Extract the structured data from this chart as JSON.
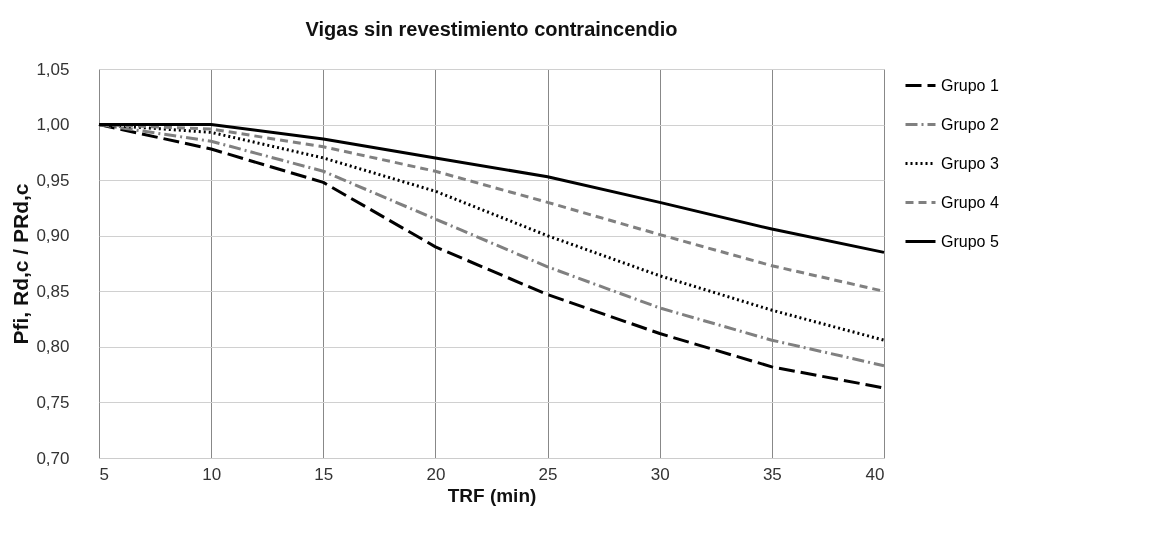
{
  "chart_data": {
    "type": "line",
    "title": "Vigas sin revestimiento contraincendio",
    "xlabel": "TRF (min)",
    "ylabel": "Pfi, Rd,c / PRd,c",
    "x": [
      5,
      10,
      15,
      20,
      25,
      30,
      35,
      40
    ],
    "series": [
      {
        "name": "Grupo 1",
        "color": "#000000",
        "line_style": "longdash",
        "values": [
          1.0,
          0.978,
          0.948,
          0.89,
          0.847,
          0.812,
          0.782,
          0.763
        ]
      },
      {
        "name": "Grupo 2",
        "color": "#808080",
        "line_style": "dashdot",
        "values": [
          1.0,
          0.985,
          0.958,
          0.915,
          0.872,
          0.835,
          0.806,
          0.783
        ]
      },
      {
        "name": "Grupo 3",
        "color": "#000000",
        "line_style": "dotted",
        "values": [
          1.0,
          0.993,
          0.97,
          0.94,
          0.9,
          0.864,
          0.833,
          0.806
        ]
      },
      {
        "name": "Grupo 4",
        "color": "#808080",
        "line_style": "dashed",
        "values": [
          1.0,
          0.996,
          0.98,
          0.958,
          0.93,
          0.901,
          0.873,
          0.85
        ]
      },
      {
        "name": "Grupo 5",
        "color": "#000000",
        "line_style": "solid",
        "values": [
          1.0,
          1.0,
          0.987,
          0.97,
          0.953,
          0.93,
          0.906,
          0.885
        ]
      }
    ],
    "xlim": [
      5,
      40
    ],
    "xticks": [
      5,
      10,
      15,
      20,
      25,
      30,
      35,
      40
    ],
    "ylim": [
      0.7,
      1.05
    ],
    "yticks": [
      {
        "value": 0.7,
        "label": "0,70"
      },
      {
        "value": 0.75,
        "label": "0,75"
      },
      {
        "value": 0.8,
        "label": "0,80"
      },
      {
        "value": 0.85,
        "label": "0,85"
      },
      {
        "value": 0.9,
        "label": "0,90"
      },
      {
        "value": 0.95,
        "label": "0,95"
      },
      {
        "value": 1.0,
        "label": "1,00"
      },
      {
        "value": 1.05,
        "label": "1,05"
      }
    ],
    "grid": true,
    "legend": "right",
    "marker": "none"
  }
}
